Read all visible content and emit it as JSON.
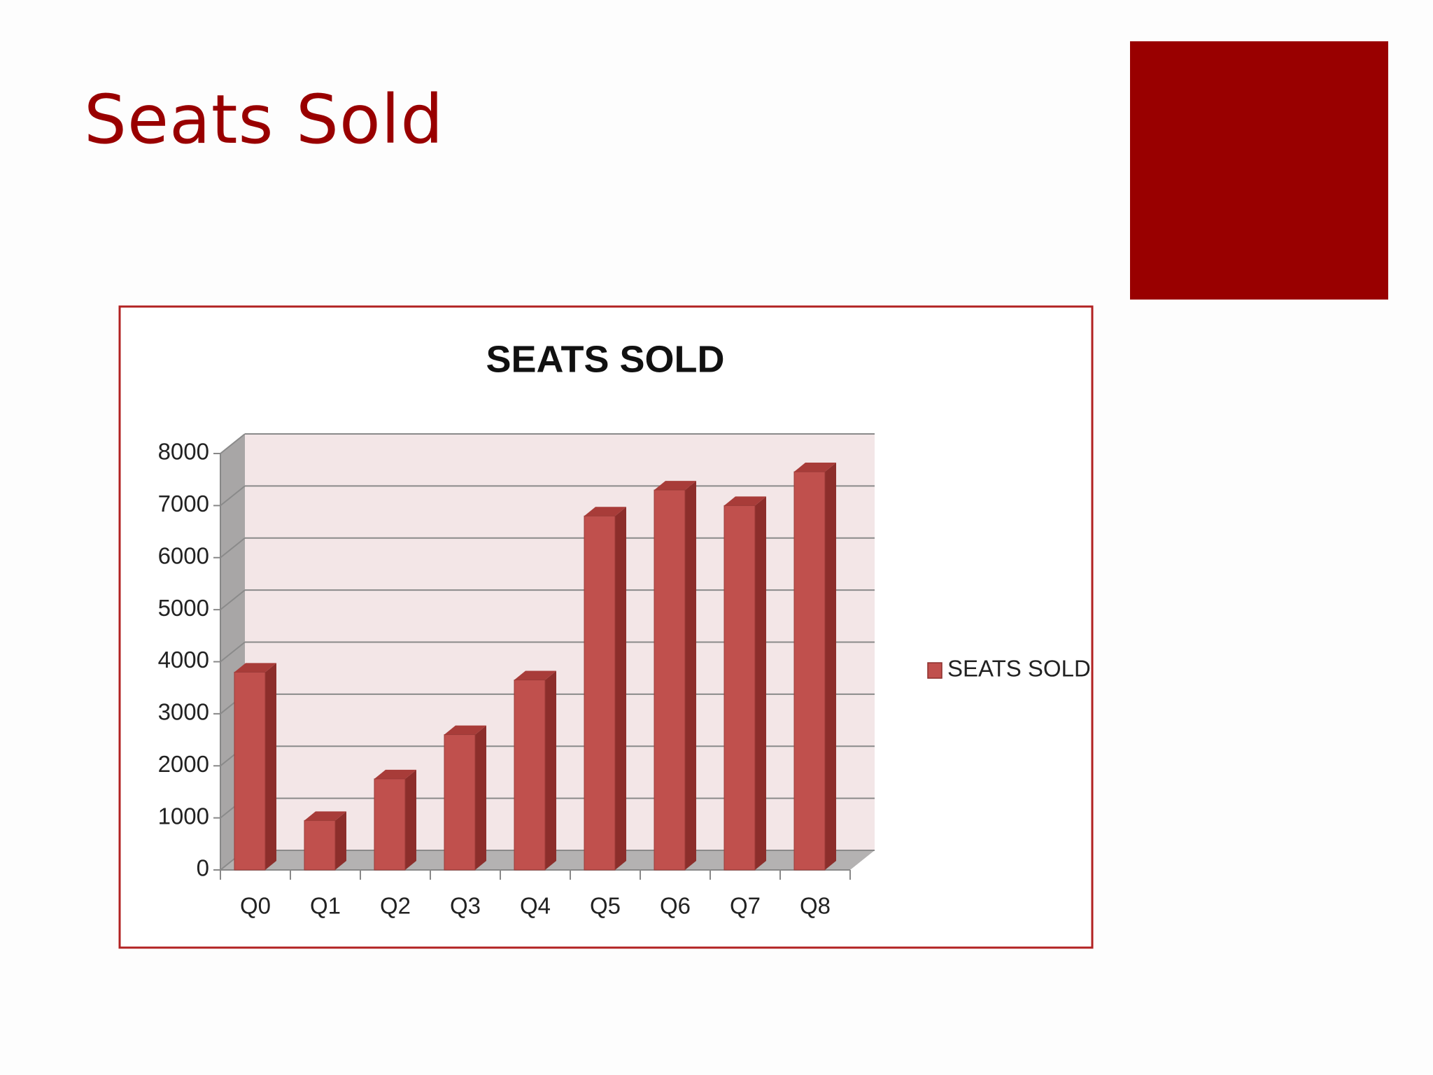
{
  "slide_title": "Seats Sold",
  "chart_data": {
    "type": "bar3d",
    "title": "SEATS SOLD",
    "categories": [
      "Q0",
      "Q1",
      "Q2",
      "Q3",
      "Q4",
      "Q5",
      "Q6",
      "Q7",
      "Q8"
    ],
    "series": [
      {
        "name": "SEATS SOLD",
        "color": "#c0504d",
        "values": [
          3800,
          950,
          1750,
          2600,
          3650,
          6800,
          7300,
          7000,
          7650
        ]
      }
    ],
    "ylim": [
      0,
      8000
    ],
    "yticks": [
      0,
      1000,
      2000,
      3000,
      4000,
      5000,
      6000,
      7000,
      8000
    ],
    "grid": true,
    "legend": "right"
  }
}
